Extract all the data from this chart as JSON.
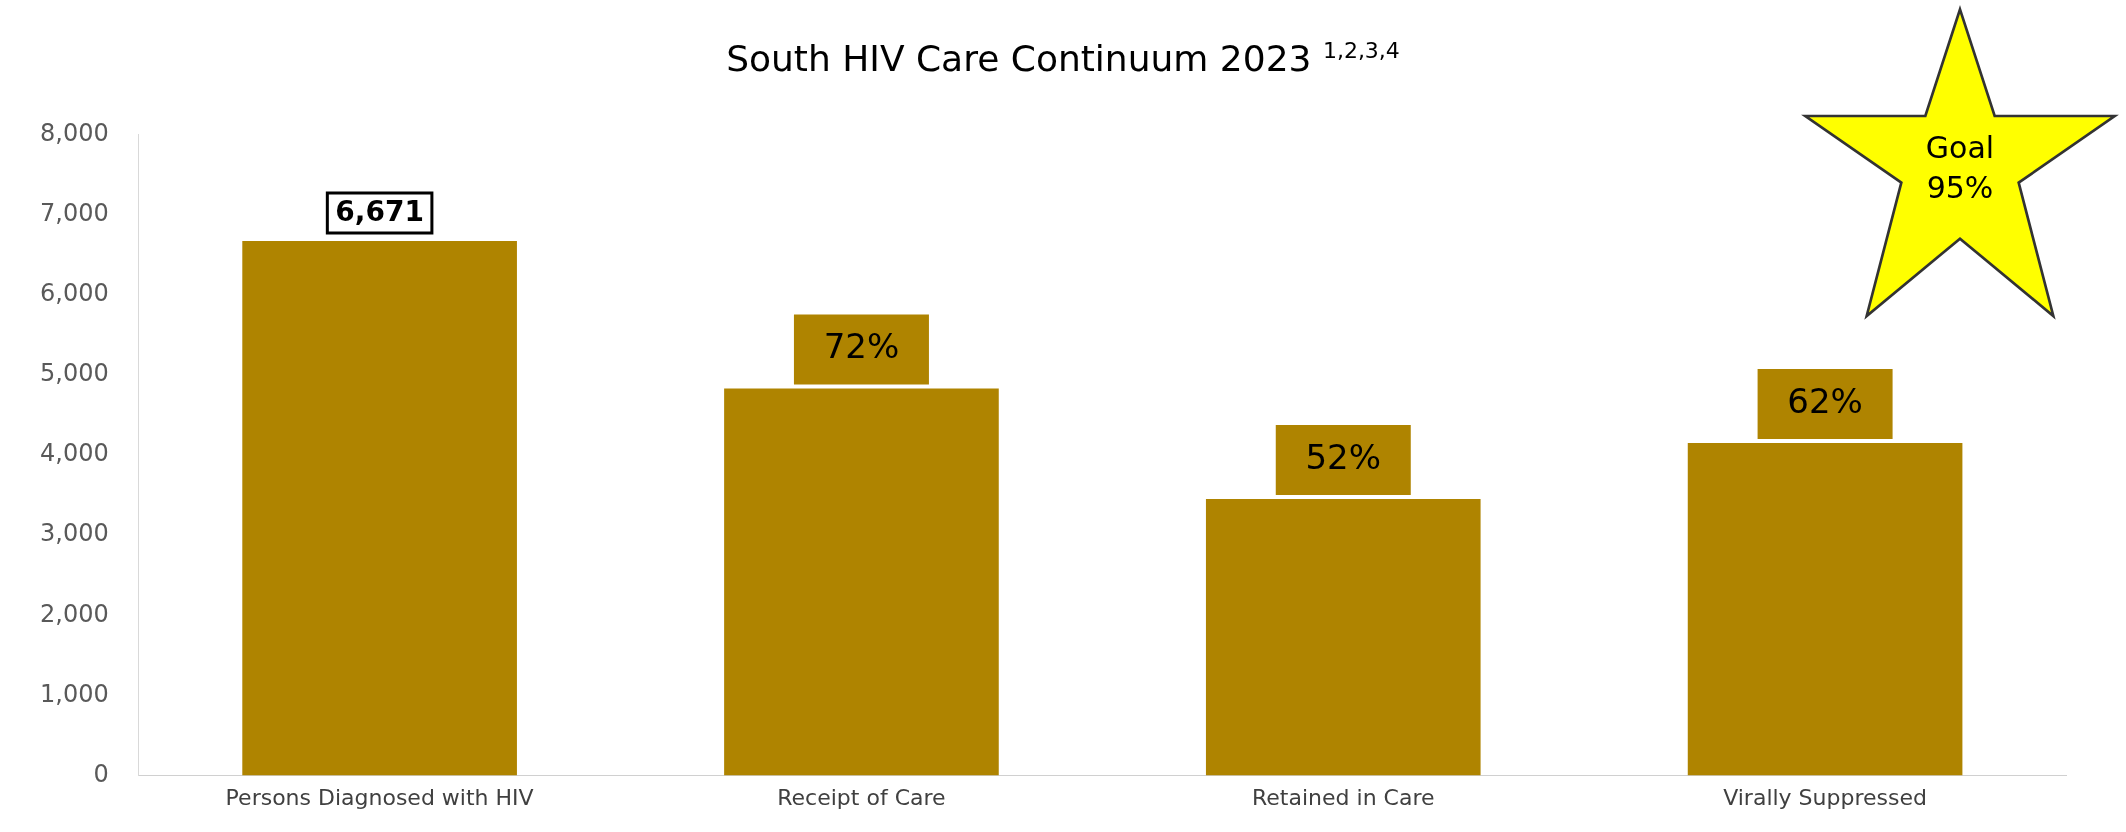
{
  "chart_data": {
    "type": "bar",
    "title": "South HIV Care Continuum 2023 $^{1,2,3,4}$",
    "categories": [
      "Persons Diagnosed with HIV",
      "Receipt of Care",
      "Retained in Care",
      "Virally Suppressed"
    ],
    "values": [
      6671,
      4830,
      3450,
      4150
    ],
    "value_labels": [
      "6,671",
      null,
      null,
      null
    ],
    "color": "#af8400",
    "ylim": [
      0,
      8000
    ],
    "yticks": [
      0,
      {
        "value": 1000,
        "label": "1,000"
      },
      {
        "value": 2000,
        "label": "2,000"
      },
      {
        "value": 3000,
        "label": "3,000"
      },
      {
        "value": 4000,
        "label": "4,000"
      },
      {
        "value": 5000,
        "label": "5,000"
      },
      {
        "value": 6000,
        "label": "6,000"
      },
      {
        "value": 7000,
        "label": "7,000"
      },
      {
        "value": 8000,
        "label": "8,000"
      }
    ],
    "grid": false,
    "legend": false,
    "annotations": [
      "Goal 95%",
      {
        "text": "72%",
        "x": "Receipt of Care",
        "y": 4830
      },
      {
        "text": "52%",
        "x": "Retained in Care",
        "y": 3450
      },
      {
        "text": "62%",
        "x": "Virally Suppressed",
        "y": 4150
      }
    ]
  }
}
